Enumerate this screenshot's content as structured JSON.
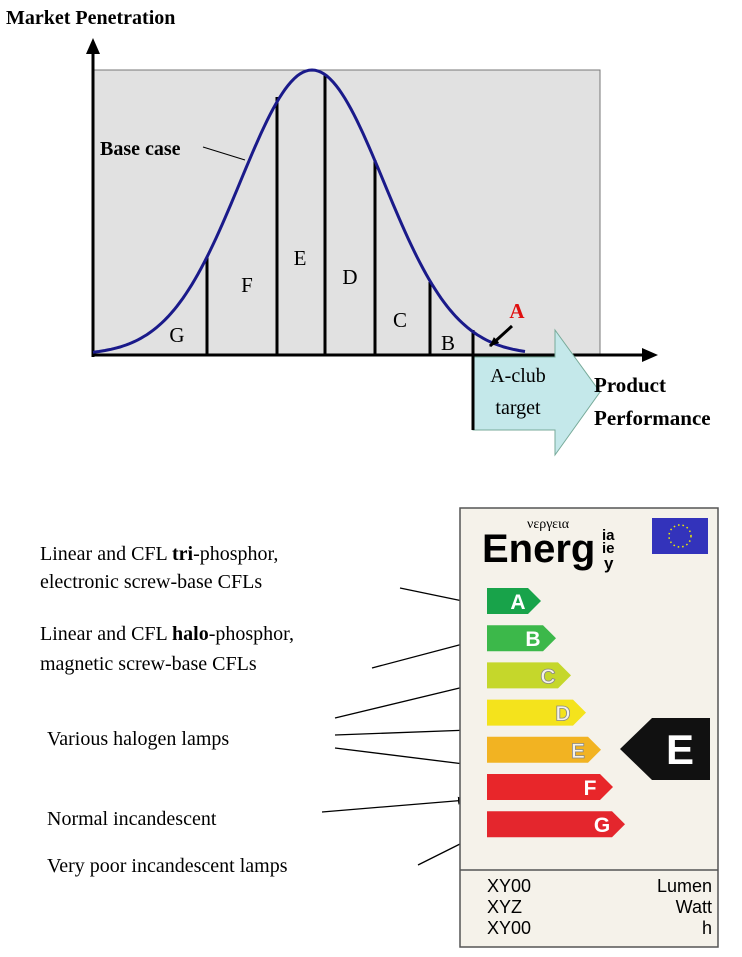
{
  "diagram": {
    "y_axis_label": "Market Penetration",
    "x_axis_label": [
      "Product",
      "Performance"
    ],
    "curve_label": "Base case",
    "segments": [
      "G",
      "F",
      "E",
      "D",
      "C",
      "B"
    ],
    "target_class": "A",
    "target_arrow": [
      "A-club",
      "target"
    ]
  },
  "annotations": [
    {
      "lines": [
        {
          "before": "Linear and CFL ",
          "bold": "tri",
          "after": "-phosphor,"
        },
        {
          "before": "electronic screw-base CFLs"
        }
      ]
    },
    {
      "lines": [
        {
          "before": "Linear and CFL ",
          "bold": "halo",
          "after": "-phosphor,"
        },
        {
          "before": "magnetic screw-base CFLs"
        }
      ]
    },
    {
      "lines": [
        {
          "before": "Various halogen lamps"
        }
      ]
    },
    {
      "lines": [
        {
          "before": "Normal incandescent"
        }
      ]
    },
    {
      "lines": [
        {
          "before": "Very poor incandescent lamps"
        }
      ]
    }
  ],
  "energy_label": {
    "title": "Energ",
    "greek": "νεργεια",
    "suffix": [
      "ia",
      "ie",
      "y"
    ],
    "classes": [
      "A",
      "B",
      "C",
      "D",
      "E",
      "F",
      "G"
    ],
    "rating": "E",
    "rows": [
      [
        "XY00",
        "Lumen"
      ],
      [
        "XYZ",
        "Watt"
      ],
      [
        "XY00",
        "h"
      ]
    ]
  }
}
